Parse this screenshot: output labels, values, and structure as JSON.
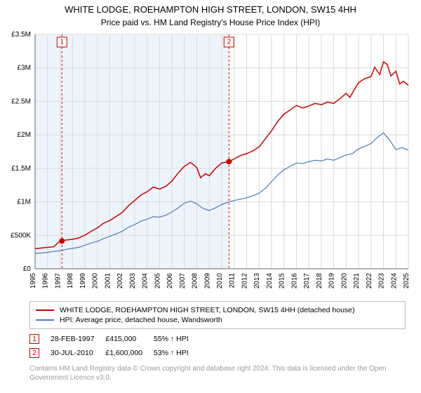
{
  "title": "WHITE LODGE, ROEHAMPTON HIGH STREET, LONDON, SW15 4HH",
  "subtitle": "Price paid vs. HM Land Registry's House Price Index (HPI)",
  "chart": {
    "type": "line",
    "background_color": "#ffffff",
    "plot_background_band_color": "#eef4fb",
    "gridline_color": "#d9d9d9",
    "axis_color": "#666666",
    "x_axis": {
      "min": 1995,
      "max": 2025,
      "ticks": [
        1995,
        1996,
        1997,
        1998,
        1999,
        2000,
        2001,
        2002,
        2003,
        2004,
        2005,
        2006,
        2007,
        2008,
        2009,
        2010,
        2011,
        2012,
        2013,
        2014,
        2015,
        2016,
        2017,
        2018,
        2019,
        2020,
        2021,
        2022,
        2023,
        2024,
        2025
      ],
      "tick_rotation_deg": -90,
      "tick_fontsize": 10
    },
    "y_axis": {
      "min": 0,
      "max": 3500000,
      "ticks": [
        0,
        500000,
        1000000,
        1500000,
        2000000,
        2500000,
        3000000,
        3500000
      ],
      "tick_labels": [
        "£0",
        "£500K",
        "£1M",
        "£1.5M",
        "£2M",
        "£2.5M",
        "£3M",
        "£3.5M"
      ],
      "tick_fontsize": 10
    },
    "series": [
      {
        "name": "property_price",
        "label": "WHITE LODGE, ROEHAMPTON HIGH STREET, LONDON, SW15 4HH (detached house)",
        "color": "#cc0000",
        "line_width": 1.5,
        "data": [
          [
            1995.0,
            300000
          ],
          [
            1995.5,
            310000
          ],
          [
            1996.0,
            320000
          ],
          [
            1996.5,
            330000
          ],
          [
            1997.0,
            415000
          ],
          [
            1997.5,
            430000
          ],
          [
            1998.0,
            440000
          ],
          [
            1998.5,
            460000
          ],
          [
            1999.0,
            500000
          ],
          [
            1999.5,
            560000
          ],
          [
            2000.0,
            610000
          ],
          [
            2000.5,
            680000
          ],
          [
            2001.0,
            720000
          ],
          [
            2001.5,
            780000
          ],
          [
            2002.0,
            840000
          ],
          [
            2002.5,
            940000
          ],
          [
            2003.0,
            1020000
          ],
          [
            2003.5,
            1100000
          ],
          [
            2004.0,
            1150000
          ],
          [
            2004.5,
            1220000
          ],
          [
            2005.0,
            1190000
          ],
          [
            2005.5,
            1230000
          ],
          [
            2006.0,
            1310000
          ],
          [
            2006.5,
            1430000
          ],
          [
            2007.0,
            1530000
          ],
          [
            2007.5,
            1590000
          ],
          [
            2008.0,
            1510000
          ],
          [
            2008.3,
            1360000
          ],
          [
            2008.7,
            1420000
          ],
          [
            2009.0,
            1390000
          ],
          [
            2009.5,
            1500000
          ],
          [
            2010.0,
            1580000
          ],
          [
            2010.58,
            1600000
          ],
          [
            2011.0,
            1640000
          ],
          [
            2011.5,
            1690000
          ],
          [
            2012.0,
            1720000
          ],
          [
            2012.5,
            1760000
          ],
          [
            2013.0,
            1820000
          ],
          [
            2013.5,
            1940000
          ],
          [
            2014.0,
            2060000
          ],
          [
            2014.5,
            2200000
          ],
          [
            2015.0,
            2310000
          ],
          [
            2015.5,
            2370000
          ],
          [
            2016.0,
            2440000
          ],
          [
            2016.5,
            2400000
          ],
          [
            2017.0,
            2430000
          ],
          [
            2017.5,
            2470000
          ],
          [
            2018.0,
            2450000
          ],
          [
            2018.5,
            2490000
          ],
          [
            2019.0,
            2470000
          ],
          [
            2019.5,
            2540000
          ],
          [
            2020.0,
            2620000
          ],
          [
            2020.3,
            2560000
          ],
          [
            2020.7,
            2690000
          ],
          [
            2021.0,
            2780000
          ],
          [
            2021.5,
            2840000
          ],
          [
            2022.0,
            2870000
          ],
          [
            2022.3,
            3010000
          ],
          [
            2022.7,
            2900000
          ],
          [
            2023.0,
            3090000
          ],
          [
            2023.3,
            3050000
          ],
          [
            2023.6,
            2880000
          ],
          [
            2024.0,
            2950000
          ],
          [
            2024.3,
            2760000
          ],
          [
            2024.6,
            2800000
          ],
          [
            2025.0,
            2740000
          ]
        ]
      },
      {
        "name": "hpi",
        "label": "HPI: Average price, detached house, Wandsworth",
        "color": "#4e7bb5",
        "line_width": 1.2,
        "data": [
          [
            1995.0,
            230000
          ],
          [
            1995.5,
            235000
          ],
          [
            1996.0,
            245000
          ],
          [
            1996.5,
            260000
          ],
          [
            1997.0,
            268000
          ],
          [
            1997.5,
            290000
          ],
          [
            1998.0,
            305000
          ],
          [
            1998.5,
            320000
          ],
          [
            1999.0,
            350000
          ],
          [
            1999.5,
            385000
          ],
          [
            2000.0,
            410000
          ],
          [
            2000.5,
            450000
          ],
          [
            2001.0,
            485000
          ],
          [
            2001.5,
            520000
          ],
          [
            2002.0,
            560000
          ],
          [
            2002.5,
            620000
          ],
          [
            2003.0,
            660000
          ],
          [
            2003.5,
            710000
          ],
          [
            2004.0,
            740000
          ],
          [
            2004.5,
            780000
          ],
          [
            2005.0,
            770000
          ],
          [
            2005.5,
            800000
          ],
          [
            2006.0,
            850000
          ],
          [
            2006.5,
            910000
          ],
          [
            2007.0,
            980000
          ],
          [
            2007.5,
            1010000
          ],
          [
            2008.0,
            970000
          ],
          [
            2008.5,
            900000
          ],
          [
            2009.0,
            870000
          ],
          [
            2009.5,
            910000
          ],
          [
            2010.0,
            960000
          ],
          [
            2010.58,
            1000000
          ],
          [
            2011.0,
            1020000
          ],
          [
            2011.5,
            1040000
          ],
          [
            2012.0,
            1060000
          ],
          [
            2012.5,
            1090000
          ],
          [
            2013.0,
            1130000
          ],
          [
            2013.5,
            1200000
          ],
          [
            2014.0,
            1300000
          ],
          [
            2014.5,
            1400000
          ],
          [
            2015.0,
            1480000
          ],
          [
            2015.5,
            1530000
          ],
          [
            2016.0,
            1580000
          ],
          [
            2016.5,
            1570000
          ],
          [
            2017.0,
            1600000
          ],
          [
            2017.5,
            1620000
          ],
          [
            2018.0,
            1610000
          ],
          [
            2018.5,
            1640000
          ],
          [
            2019.0,
            1620000
          ],
          [
            2019.5,
            1660000
          ],
          [
            2020.0,
            1700000
          ],
          [
            2020.5,
            1720000
          ],
          [
            2021.0,
            1790000
          ],
          [
            2021.5,
            1830000
          ],
          [
            2022.0,
            1870000
          ],
          [
            2022.5,
            1960000
          ],
          [
            2023.0,
            2030000
          ],
          [
            2023.5,
            1920000
          ],
          [
            2024.0,
            1780000
          ],
          [
            2024.5,
            1810000
          ],
          [
            2025.0,
            1770000
          ]
        ]
      }
    ],
    "sale_markers": [
      {
        "num": "1",
        "x": 1997.16,
        "y": 415000
      },
      {
        "num": "2",
        "x": 2010.58,
        "y": 1600000
      }
    ],
    "marker_point_color": "#cc0000",
    "marker_dash_color": "#cc0000"
  },
  "legend": {
    "rows": [
      {
        "color": "#cc0000",
        "label": "WHITE LODGE, ROEHAMPTON HIGH STREET, LONDON, SW15 4HH (detached house)"
      },
      {
        "color": "#4e7bb5",
        "label": "HPI: Average price, detached house, Wandsworth"
      }
    ]
  },
  "marker_table": {
    "rows": [
      {
        "num": "1",
        "date": "28-FEB-1997",
        "price": "£415,000",
        "delta": "55% ↑ HPI"
      },
      {
        "num": "2",
        "date": "30-JUL-2010",
        "price": "£1,600,000",
        "delta": "53% ↑ HPI"
      }
    ]
  },
  "attribution": "Contains HM Land Registry data © Crown copyright and database right 2024.\nThis data is licensed under the Open Government Licence v3.0."
}
